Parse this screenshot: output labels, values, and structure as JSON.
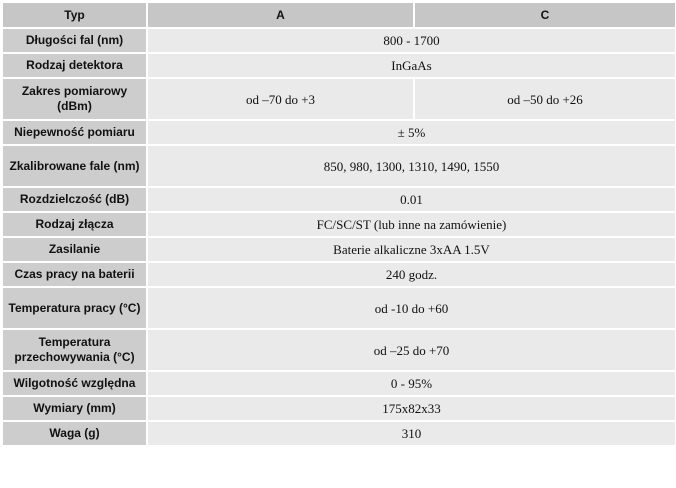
{
  "table": {
    "header": {
      "typ": "Typ",
      "a": "A",
      "c": "C"
    },
    "rows": [
      {
        "label": "Długości fal (nm)",
        "value": "800 - 1700"
      },
      {
        "label": "Rodzaj detektora",
        "value": "InGaAs"
      },
      {
        "label": "Zakres pomiarowy (dBm)",
        "value_a": "od –70 do +3",
        "value_c": "od –50 do +26"
      },
      {
        "label": "Niepewność pomiaru",
        "value": "± 5%"
      },
      {
        "label": "Zkalibrowane fale (nm)",
        "value": "850, 980, 1300, 1310, 1490, 1550"
      },
      {
        "label": "Rozdzielczość (dB)",
        "value": "0.01"
      },
      {
        "label": "Rodzaj złącza",
        "value": "FC/SC/ST (lub inne na zamówienie)"
      },
      {
        "label": "Zasilanie",
        "value": "Baterie alkaliczne 3xAA 1.5V"
      },
      {
        "label": "Czas pracy na baterii",
        "value": "240 godz."
      },
      {
        "label": "Temperatura pracy (°C)",
        "value": "od -10 do +60"
      },
      {
        "label": "Temperatura przechowywania (°C)",
        "value": "od –25 do +70"
      },
      {
        "label": "Wilgotność względna",
        "value": "0 - 95%"
      },
      {
        "label": "Wymiary (mm)",
        "value": "175x82x33"
      },
      {
        "label": "Waga (g)",
        "value": "310"
      }
    ]
  }
}
